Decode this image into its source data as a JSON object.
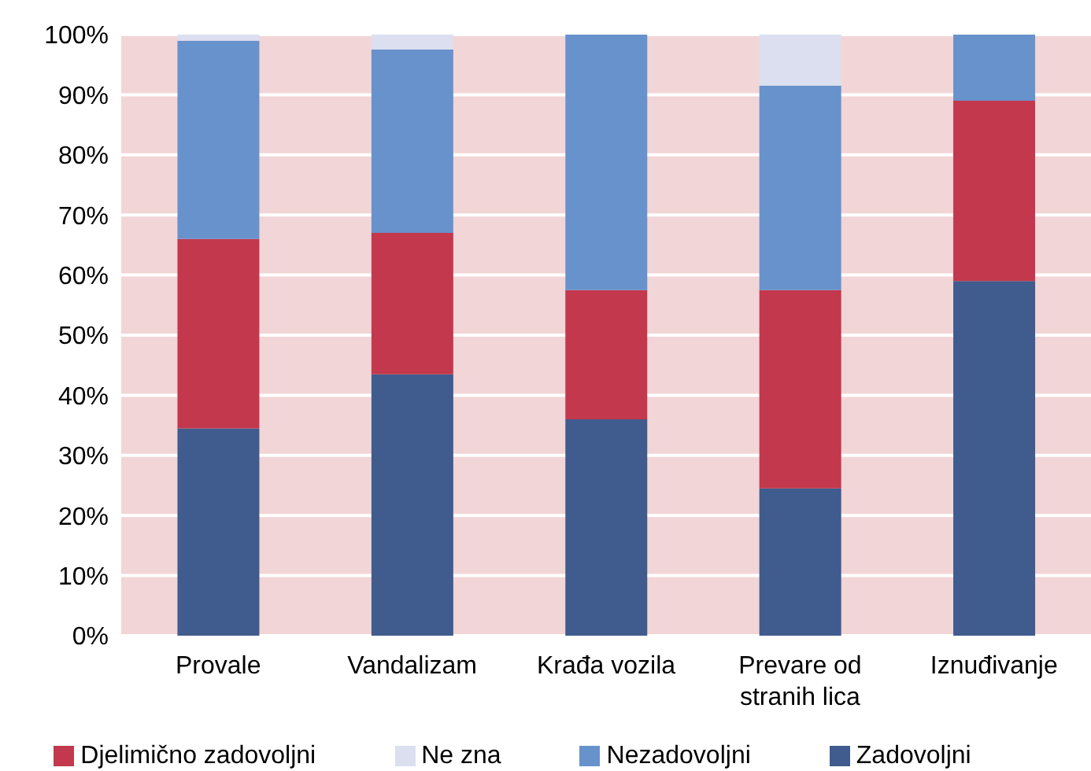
{
  "chart_data": {
    "type": "bar",
    "stacked": true,
    "categories": [
      "Provale",
      "Vandalizam",
      "Krađa vozila",
      "Prevare od stranih lica",
      "Iznuđivanje"
    ],
    "series": [
      {
        "name": "Zadovoljni",
        "color": "#405b8e",
        "values": [
          34.5,
          43.5,
          36,
          24.5,
          59
        ]
      },
      {
        "name": "Djelimično zadovoljni",
        "color": "#c3384c",
        "values": [
          31.5,
          23.5,
          21.5,
          33,
          30
        ]
      },
      {
        "name": "Nezadovoljni",
        "color": "#6892cc",
        "values": [
          33,
          30.5,
          42.5,
          34,
          11
        ]
      },
      {
        "name": "Ne zna",
        "color": "#dcdff0",
        "values": [
          1,
          2.5,
          0,
          8.5,
          0
        ]
      }
    ],
    "ylim": [
      0,
      100
    ],
    "yticks": [
      {
        "value": 0,
        "label": "0%"
      },
      {
        "value": 10,
        "label": "10%"
      },
      {
        "value": 20,
        "label": "20%"
      },
      {
        "value": 30,
        "label": "30%"
      },
      {
        "value": 40,
        "label": "40%"
      },
      {
        "value": 50,
        "label": "50%"
      },
      {
        "value": 60,
        "label": "60%"
      },
      {
        "value": 70,
        "label": "70%"
      },
      {
        "value": 80,
        "label": "80%"
      },
      {
        "value": 90,
        "label": "90%"
      },
      {
        "value": 100,
        "label": "100%"
      }
    ],
    "grid": "y",
    "legend": "bottom"
  }
}
